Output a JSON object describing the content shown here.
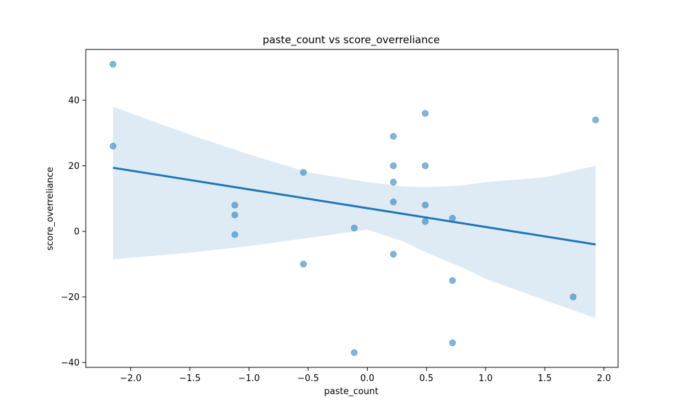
{
  "chart_data": {
    "type": "scatter",
    "title": "paste_count vs score_overreliance",
    "xlabel": "paste_count",
    "ylabel": "score_overreliance",
    "xlim": [
      -2.38,
      2.12
    ],
    "ylim": [
      -41.5,
      55.5
    ],
    "xticks": [
      -2.0,
      -1.5,
      -1.0,
      -0.5,
      0.0,
      0.5,
      1.0,
      1.5,
      2.0
    ],
    "xtick_labels": [
      "−2.0",
      "−1.5",
      "−1.0",
      "−0.5",
      "0.0",
      "0.5",
      "1.0",
      "1.5",
      "2.0"
    ],
    "yticks": [
      -40,
      -20,
      0,
      20,
      40
    ],
    "ytick_labels": [
      "−40",
      "−20",
      "0",
      "20",
      "40"
    ],
    "grid": false,
    "colors": {
      "points": "#1f77b4",
      "line": "#1f77b4",
      "band": "#1f77b4"
    },
    "points": [
      {
        "x": -2.15,
        "y": 51
      },
      {
        "x": -2.15,
        "y": 26
      },
      {
        "x": -1.12,
        "y": 8
      },
      {
        "x": -1.12,
        "y": 5
      },
      {
        "x": -1.12,
        "y": -1
      },
      {
        "x": -0.54,
        "y": 18
      },
      {
        "x": -0.54,
        "y": -10
      },
      {
        "x": -0.11,
        "y": 1
      },
      {
        "x": -0.11,
        "y": -37
      },
      {
        "x": 0.22,
        "y": 29
      },
      {
        "x": 0.22,
        "y": 20
      },
      {
        "x": 0.22,
        "y": 15
      },
      {
        "x": 0.22,
        "y": 9
      },
      {
        "x": 0.22,
        "y": -7
      },
      {
        "x": 0.49,
        "y": 36
      },
      {
        "x": 0.49,
        "y": 20
      },
      {
        "x": 0.49,
        "y": 8
      },
      {
        "x": 0.49,
        "y": 3
      },
      {
        "x": 0.72,
        "y": 4
      },
      {
        "x": 0.72,
        "y": -15
      },
      {
        "x": 0.72,
        "y": -34
      },
      {
        "x": 1.74,
        "y": -20
      },
      {
        "x": 1.93,
        "y": 34
      }
    ],
    "regression_line": {
      "x": [
        -2.15,
        1.93
      ],
      "y": [
        19.4,
        -4.0
      ]
    },
    "confidence_band": {
      "x": [
        -2.15,
        -1.5,
        -1.0,
        -0.5,
        0.0,
        0.3,
        0.5,
        0.8,
        1.0,
        1.5,
        1.93
      ],
      "upper": [
        38.0,
        29.5,
        23.5,
        18.0,
        15.0,
        13.7,
        13.5,
        14.0,
        15.0,
        16.5,
        20.0
      ],
      "lower": [
        -8.5,
        -6.5,
        -4.5,
        -2.0,
        0.5,
        -3.0,
        -6.5,
        -11.0,
        -14.5,
        -21.0,
        -26.5
      ]
    }
  }
}
